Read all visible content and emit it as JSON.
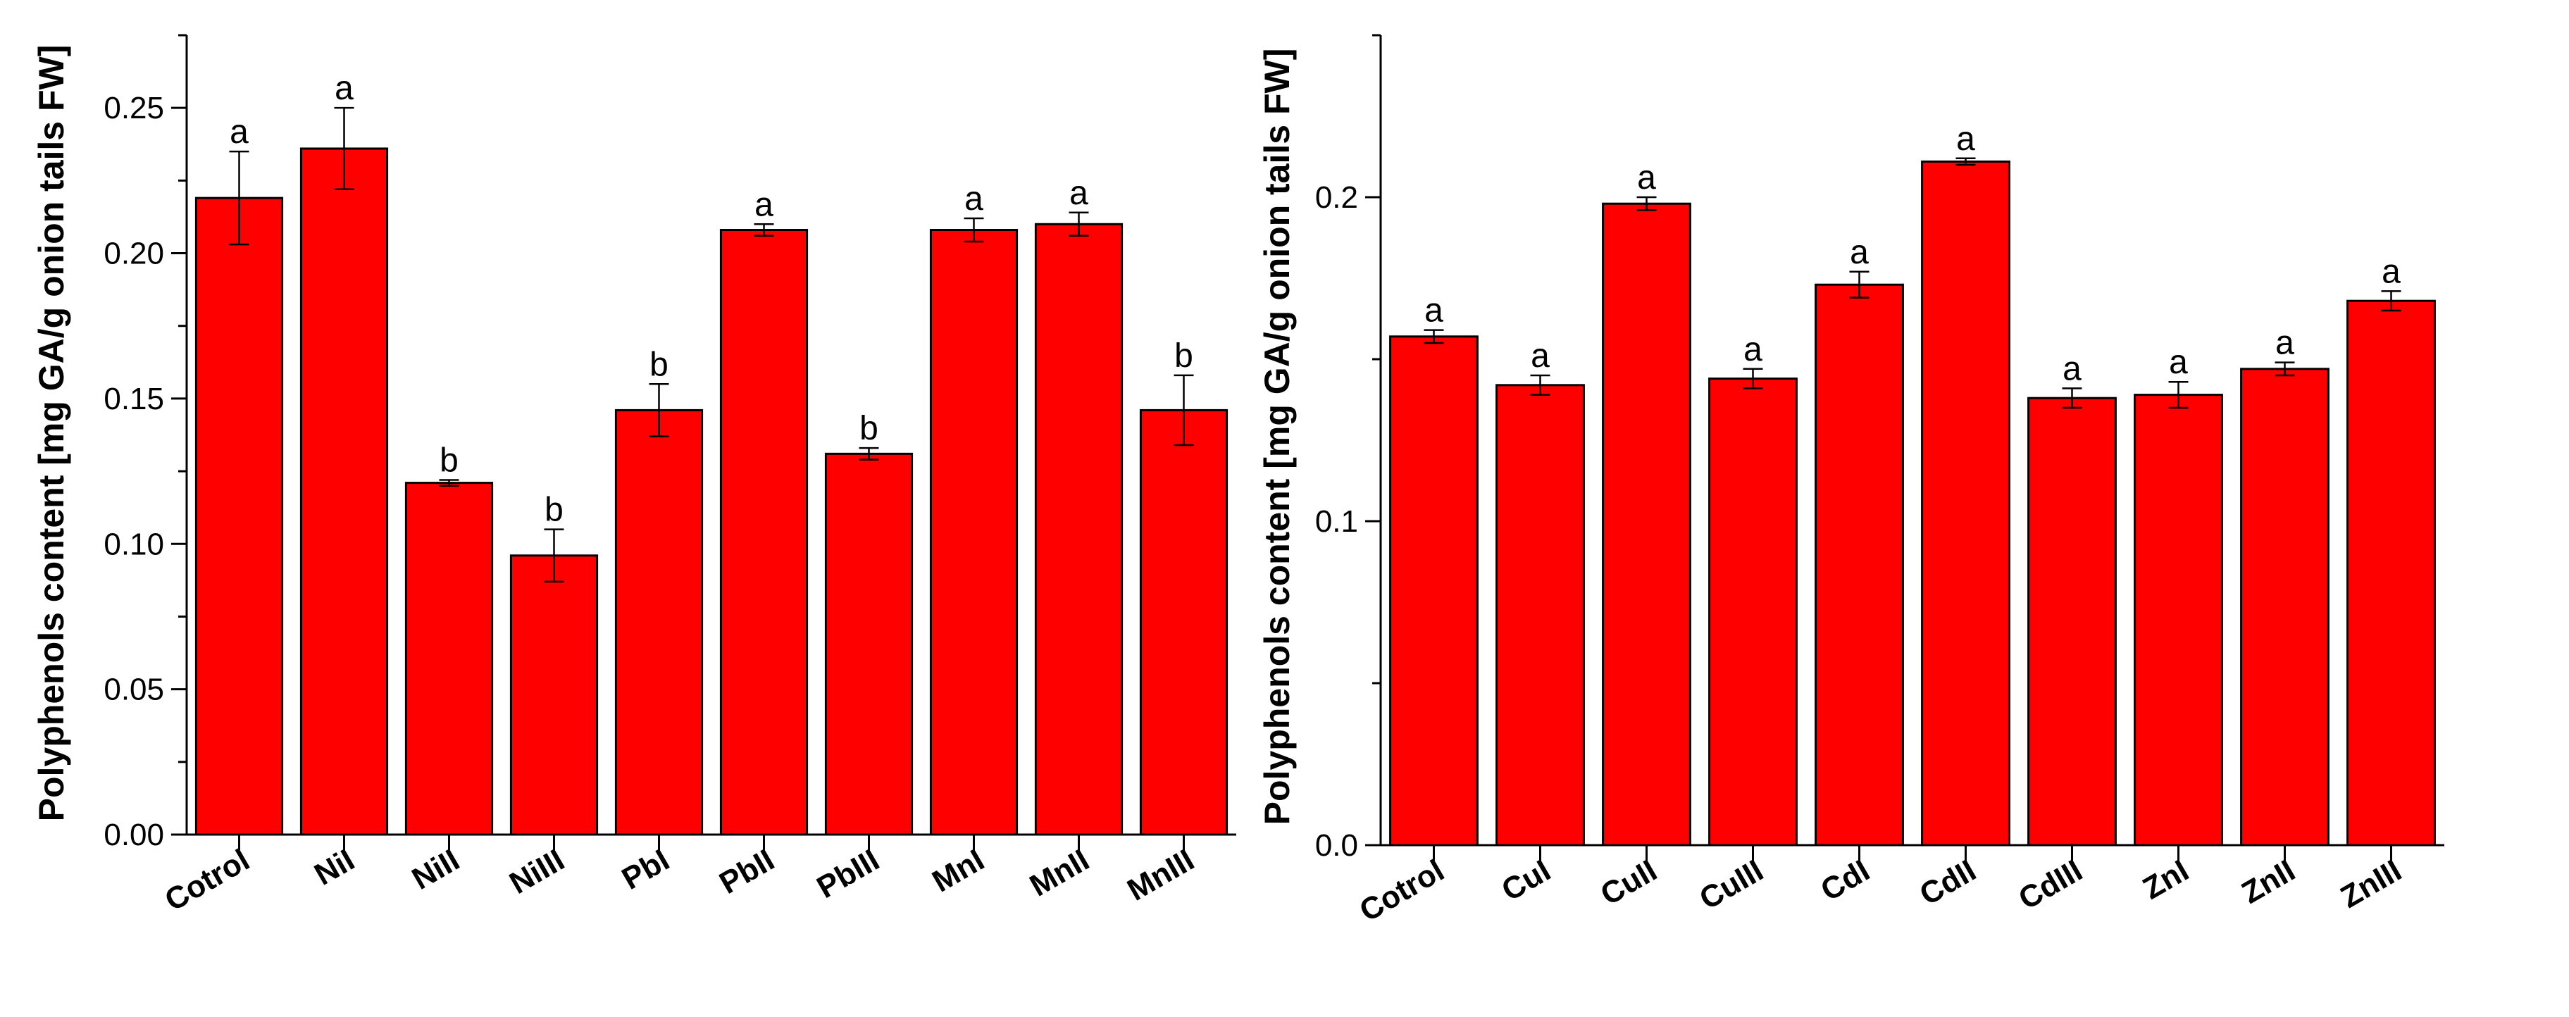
{
  "chart_data": [
    {
      "type": "bar",
      "title": "",
      "xlabel": "",
      "ylabel": "Polyphenols content [mg GA/g onion tails FW]",
      "ylim": [
        0,
        0.275
      ],
      "yticks": [
        0.0,
        0.05,
        0.1,
        0.15,
        0.2,
        0.25
      ],
      "ytick_labels": [
        "0.00",
        "0.05",
        "0.10",
        "0.15",
        "0.20",
        "0.25"
      ],
      "categories": [
        "Cotrol",
        "NiI",
        "NiII",
        "NiIII",
        "PbI",
        "PbII",
        "PbIII",
        "MnI",
        "MnII",
        "MnIII"
      ],
      "values": [
        0.219,
        0.236,
        0.121,
        0.096,
        0.146,
        0.208,
        0.131,
        0.208,
        0.21,
        0.146
      ],
      "errors": [
        0.016,
        0.014,
        0.001,
        0.009,
        0.009,
        0.002,
        0.002,
        0.004,
        0.004,
        0.012
      ],
      "significance": [
        "a",
        "a",
        "b",
        "b",
        "b",
        "a",
        "b",
        "a",
        "a",
        "b"
      ],
      "bar_color": "#ff0000"
    },
    {
      "type": "bar",
      "title": "",
      "xlabel": "",
      "ylabel": "Polyphenols content [mg GA/g onion tails FW]",
      "ylim": [
        0,
        0.25
      ],
      "yticks": [
        0.0,
        0.1,
        0.2
      ],
      "ytick_labels": [
        "0.0",
        "0.1",
        "0.2"
      ],
      "categories": [
        "Cotrol",
        "CuI",
        "CuII",
        "CuIII",
        "CdI",
        "CdII",
        "CdIII",
        "ZnI",
        "ZnII",
        "ZnIII"
      ],
      "values": [
        0.157,
        0.142,
        0.198,
        0.144,
        0.173,
        0.211,
        0.138,
        0.139,
        0.147,
        0.168
      ],
      "errors": [
        0.002,
        0.003,
        0.002,
        0.003,
        0.004,
        0.001,
        0.003,
        0.004,
        0.002,
        0.003
      ],
      "significance": [
        "a",
        "a",
        "a",
        "a",
        "a",
        "a",
        "a",
        "a",
        "a",
        "a"
      ],
      "bar_color": "#ff0000"
    }
  ]
}
